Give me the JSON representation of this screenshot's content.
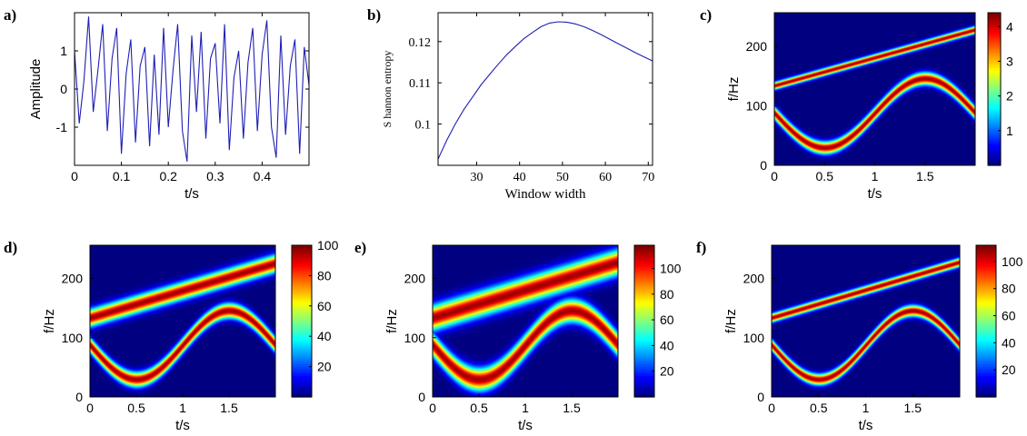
{
  "chart_data": [
    {
      "id": "a",
      "panel_label": "a)",
      "type": "line",
      "xlabel": "t/s",
      "ylabel": "Amplitude",
      "xlim": [
        0,
        0.5
      ],
      "ylim": [
        -2,
        2
      ],
      "xticks": [
        0,
        0.1,
        0.2,
        0.3,
        0.4
      ],
      "xtick_labels": [
        "0",
        "0.1",
        "0.2",
        "0.3",
        "0.4"
      ],
      "yticks": [
        -1,
        0,
        1
      ],
      "ytick_labels": [
        "-1",
        "0",
        "1"
      ],
      "series": [
        {
          "color": "#1f1fb4",
          "x": [
            0,
            0.01,
            0.02,
            0.03,
            0.04,
            0.05,
            0.06,
            0.07,
            0.08,
            0.09,
            0.1,
            0.11,
            0.12,
            0.13,
            0.14,
            0.15,
            0.16,
            0.17,
            0.18,
            0.19,
            0.2,
            0.21,
            0.22,
            0.23,
            0.24,
            0.25,
            0.26,
            0.27,
            0.28,
            0.29,
            0.3,
            0.31,
            0.32,
            0.33,
            0.34,
            0.35,
            0.36,
            0.37,
            0.38,
            0.39,
            0.4,
            0.41,
            0.42,
            0.43,
            0.44,
            0.45,
            0.46,
            0.47,
            0.48,
            0.49,
            0.5
          ],
          "y": [
            1.0,
            -0.9,
            0.2,
            1.9,
            -0.6,
            0.5,
            1.7,
            -1.1,
            0.8,
            1.6,
            -1.7,
            0.4,
            1.3,
            -1.4,
            0.6,
            1.1,
            -1.5,
            0.9,
            -1.2,
            1.6,
            -1.0,
            0.5,
            1.7,
            -1.1,
            -1.9,
            1.4,
            -0.6,
            1.5,
            -1.3,
            0.8,
            1.2,
            -0.9,
            1.7,
            -1.6,
            0.3,
            1.0,
            -1.3,
            0.7,
            1.6,
            -1.1,
            0.9,
            1.8,
            -1.0,
            -1.8,
            1.4,
            -1.2,
            0.6,
            1.3,
            -1.7,
            1.1,
            0.1
          ]
        }
      ]
    },
    {
      "id": "b",
      "panel_label": "b)",
      "type": "line",
      "xlabel": "Window width",
      "ylabel": "S hannon entropy",
      "xlim": [
        21,
        71
      ],
      "ylim": [
        0.09,
        0.127
      ],
      "xticks": [
        30,
        40,
        50,
        60,
        70
      ],
      "xtick_labels": [
        "30",
        "40",
        "50",
        "60",
        "70"
      ],
      "yticks": [
        0.1,
        0.11,
        0.12
      ],
      "ytick_labels": [
        "0.1",
        "0.11",
        "0.12"
      ],
      "series": [
        {
          "color": "#1f1fb4",
          "x": [
            21,
            23,
            25,
            27,
            29,
            31,
            33,
            35,
            37,
            39,
            41,
            43,
            45,
            47,
            49,
            51,
            53,
            55,
            57,
            59,
            61,
            63,
            65,
            67,
            69,
            71
          ],
          "y": [
            0.0915,
            0.096,
            0.1,
            0.1035,
            0.1065,
            0.1095,
            0.112,
            0.1145,
            0.1168,
            0.1188,
            0.1207,
            0.1222,
            0.1236,
            0.1245,
            0.1248,
            0.1247,
            0.1243,
            0.1236,
            0.1227,
            0.1217,
            0.1206,
            0.1195,
            0.1184,
            0.1173,
            0.1163,
            0.1153
          ]
        }
      ]
    },
    {
      "id": "c",
      "panel_label": "c)",
      "type": "heatmap",
      "xlabel": "t/s",
      "ylabel": "f/Hz",
      "xlim": [
        0,
        2
      ],
      "ylim": [
        0,
        256
      ],
      "xticks": [
        0,
        0.5,
        1,
        1.5
      ],
      "xtick_labels": [
        "0",
        "0.5",
        "1",
        "1.5"
      ],
      "yticks": [
        0,
        100,
        200
      ],
      "ytick_labels": [
        "0",
        "100",
        "200"
      ],
      "colorbar_ticks": [
        1,
        2,
        3,
        4
      ],
      "colorbar_labels": [
        "1",
        "2",
        "3",
        "4"
      ],
      "colorbar_range": [
        0,
        4.4
      ],
      "ridges": [
        {
          "name": "linear",
          "f_start": 134,
          "f_end": 228,
          "half_width_hz": 6
        },
        {
          "name": "sinusoidal",
          "center_hz": 88,
          "amplitude_hz": 58,
          "half_width_hz": 10
        }
      ]
    },
    {
      "id": "d",
      "panel_label": "d)",
      "type": "heatmap",
      "xlabel": "t/s",
      "ylabel": "f/Hz",
      "xlim": [
        0,
        2
      ],
      "ylim": [
        0,
        256
      ],
      "xticks": [
        0,
        0.5,
        1,
        1.5
      ],
      "xtick_labels": [
        "0",
        "0.5",
        "1",
        "1.5"
      ],
      "yticks": [
        0,
        100,
        200
      ],
      "ytick_labels": [
        "0",
        "100",
        "200"
      ],
      "colorbar_ticks": [
        20,
        40,
        60,
        80,
        100
      ],
      "colorbar_labels": [
        "20",
        "40",
        "60",
        "80",
        "100"
      ],
      "colorbar_range": [
        0,
        100
      ],
      "ridges": [
        {
          "name": "linear",
          "f_start": 134,
          "f_end": 226,
          "half_width_hz": 14
        },
        {
          "name": "sinusoidal",
          "center_hz": 88,
          "amplitude_hz": 58,
          "half_width_hz": 12
        }
      ]
    },
    {
      "id": "e",
      "panel_label": "e)",
      "type": "heatmap",
      "xlabel": "t/s",
      "ylabel": "f/Hz",
      "xlim": [
        0,
        2
      ],
      "ylim": [
        0,
        256
      ],
      "xticks": [
        0,
        0.5,
        1,
        1.5
      ],
      "xtick_labels": [
        "0",
        "0.5",
        "1",
        "1.5"
      ],
      "yticks": [
        0,
        100,
        200
      ],
      "ytick_labels": [
        "0",
        "100",
        "200"
      ],
      "colorbar_ticks": [
        20,
        40,
        60,
        80,
        100
      ],
      "colorbar_labels": [
        "20",
        "40",
        "60",
        "80",
        "100"
      ],
      "colorbar_range": [
        0,
        118
      ],
      "ridges": [
        {
          "name": "linear",
          "f_start": 134,
          "f_end": 228,
          "half_width_hz": 20
        },
        {
          "name": "sinusoidal",
          "center_hz": 88,
          "amplitude_hz": 58,
          "half_width_hz": 18
        }
      ]
    },
    {
      "id": "f",
      "panel_label": "f)",
      "type": "heatmap",
      "xlabel": "t/s",
      "ylabel": "f/Hz",
      "xlim": [
        0,
        2
      ],
      "ylim": [
        0,
        256
      ],
      "xticks": [
        0,
        0.5,
        1,
        1.5
      ],
      "xtick_labels": [
        "0",
        "0.5",
        "1",
        "1.5"
      ],
      "yticks": [
        0,
        100,
        200
      ],
      "ytick_labels": [
        "0",
        "100",
        "200"
      ],
      "colorbar_ticks": [
        20,
        40,
        60,
        80,
        100
      ],
      "colorbar_labels": [
        "20",
        "40",
        "60",
        "80",
        "100"
      ],
      "colorbar_range": [
        0,
        112
      ],
      "ridges": [
        {
          "name": "linear",
          "f_start": 134,
          "f_end": 228,
          "half_width_hz": 7
        },
        {
          "name": "sinusoidal",
          "center_hz": 88,
          "amplitude_hz": 58,
          "half_width_hz": 9
        }
      ]
    }
  ]
}
